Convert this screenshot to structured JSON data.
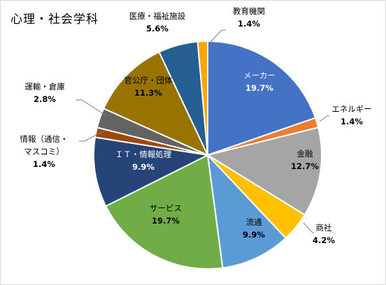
{
  "chart_data": {
    "type": "pie",
    "title": "心理・社会学科",
    "start_angle_deg": 0,
    "direction": "clockwise",
    "slices": [
      {
        "label": "メーカー",
        "label_lines": [
          "メーカー"
        ],
        "value": 19.7,
        "display": "19.7%",
        "color": "#4472C4",
        "label_inside": true,
        "text_color": "#ffffff"
      },
      {
        "label": "エネルギー",
        "label_lines": [
          "エネルギー"
        ],
        "value": 1.4,
        "display": "1.4%",
        "color": "#ED7D31",
        "label_inside": false,
        "text_color": "#000000"
      },
      {
        "label": "金融",
        "label_lines": [
          "金融"
        ],
        "value": 12.7,
        "display": "12.7%",
        "color": "#A5A5A5",
        "label_inside": true,
        "text_color": "#000000"
      },
      {
        "label": "商社",
        "label_lines": [
          "商社"
        ],
        "value": 4.2,
        "display": "4.2%",
        "color": "#FFC000",
        "label_inside": false,
        "text_color": "#000000"
      },
      {
        "label": "流通",
        "label_lines": [
          "流通"
        ],
        "value": 9.9,
        "display": "9.9%",
        "color": "#5B9BD5",
        "label_inside": true,
        "text_color": "#000000"
      },
      {
        "label": "サービス",
        "label_lines": [
          "サービス"
        ],
        "value": 19.7,
        "display": "19.7%",
        "color": "#70AD47",
        "label_inside": true,
        "text_color": "#000000"
      },
      {
        "label": "ＩＴ・情報処理",
        "label_lines": [
          "ＩＴ・情報処理"
        ],
        "value": 9.9,
        "display": "9.9%",
        "color": "#264478",
        "label_inside": true,
        "text_color": "#ffffff"
      },
      {
        "label": "情報（通信・マスコミ）",
        "label_lines": [
          "情報（通信・",
          "マスコミ）"
        ],
        "value": 1.4,
        "display": "1.4%",
        "color": "#9E480E",
        "label_inside": false,
        "text_color": "#000000"
      },
      {
        "label": "運輸・倉庫",
        "label_lines": [
          "運輸・倉庫"
        ],
        "value": 2.8,
        "display": "2.8%",
        "color": "#636363",
        "label_inside": false,
        "text_color": "#000000"
      },
      {
        "label": "官公庁・団体",
        "label_lines": [
          "官公庁・団体"
        ],
        "value": 11.3,
        "display": "11.3%",
        "color": "#997300",
        "label_inside": true,
        "text_color": "#000000"
      },
      {
        "label": "医療・福祉施設",
        "label_lines": [
          "医療・福祉施設"
        ],
        "value": 5.6,
        "display": "5.6%",
        "color": "#255E91",
        "label_inside": false,
        "text_color": "#000000"
      },
      {
        "label": "教育機関",
        "label_lines": [
          "教育機関"
        ],
        "value": 1.4,
        "display": "1.4%",
        "color": "#FFA500",
        "label_inside": false,
        "text_color": "#000000"
      }
    ],
    "legend": "none"
  }
}
